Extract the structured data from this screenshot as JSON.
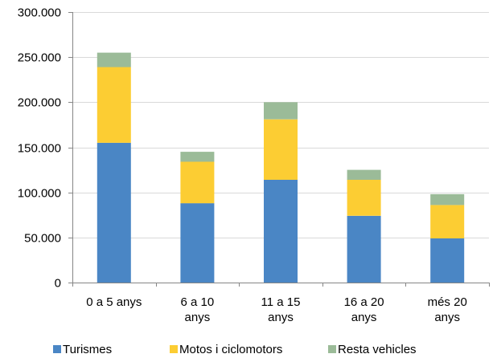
{
  "chart_data": {
    "type": "bar",
    "stacked": true,
    "categories": [
      [
        "0 a 5 anys"
      ],
      [
        "6  a 10",
        "anys"
      ],
      [
        "11 a 15",
        "anys"
      ],
      [
        "16 a 20",
        "anys"
      ],
      [
        "més 20",
        "anys"
      ]
    ],
    "series": [
      {
        "name": "Turismes",
        "color": "#4a86c5",
        "values": [
          155000,
          88000,
          114000,
          74000,
          49000
        ]
      },
      {
        "name": "Motos i ciclomotors",
        "color": "#fccd33",
        "values": [
          84000,
          46000,
          67000,
          40000,
          37000
        ]
      },
      {
        "name": "Resta vehicles",
        "color": "#9bbb98",
        "values": [
          16000,
          11000,
          19000,
          11000,
          12000
        ]
      }
    ],
    "ylim": [
      0,
      300000
    ],
    "yticks": [
      0,
      50000,
      100000,
      150000,
      200000,
      250000,
      300000
    ],
    "ytick_labels": [
      "0",
      "50.000",
      "100.000",
      "150.000",
      "200.000",
      "250.000",
      "300.000"
    ],
    "grid": true,
    "legend_position": "bottom"
  }
}
